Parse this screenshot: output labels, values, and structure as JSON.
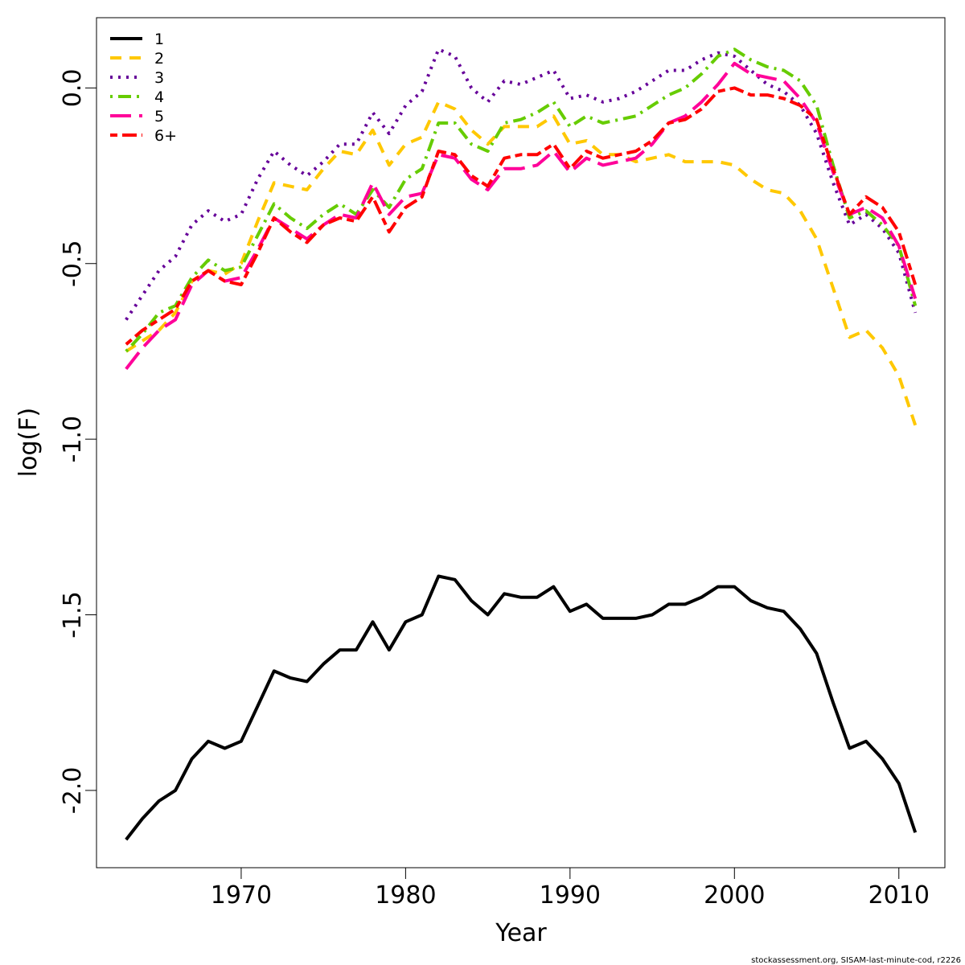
{
  "chart_data": {
    "type": "line",
    "xlabel": "Year",
    "ylabel": "log(F)",
    "xlim": [
      1961.2,
      2012.8
    ],
    "ylim": [
      -2.22,
      0.2
    ],
    "xticks": [
      1970,
      1980,
      1990,
      2000,
      2010
    ],
    "yticks": [
      -2.0,
      -1.5,
      -1.0,
      -0.5,
      0.0
    ],
    "ytick_labels": [
      "-2.0",
      "-1.5",
      "-1.0",
      "-0.5",
      "0.0"
    ],
    "grid": false,
    "legend_position": "top-left",
    "x": [
      1963,
      1964,
      1965,
      1966,
      1967,
      1968,
      1969,
      1970,
      1971,
      1972,
      1973,
      1974,
      1975,
      1976,
      1977,
      1978,
      1979,
      1980,
      1981,
      1982,
      1983,
      1984,
      1985,
      1986,
      1987,
      1988,
      1989,
      1990,
      1991,
      1992,
      1993,
      1994,
      1995,
      1996,
      1997,
      1998,
      1999,
      2000,
      2001,
      2002,
      2003,
      2004,
      2005,
      2006,
      2007,
      2008,
      2009,
      2010,
      2011
    ],
    "series": [
      {
        "name": "1",
        "color": "#000000",
        "dash": "solid",
        "values": [
          -2.14,
          -2.08,
          -2.03,
          -2.0,
          -1.91,
          -1.86,
          -1.88,
          -1.86,
          -1.76,
          -1.66,
          -1.68,
          -1.69,
          -1.64,
          -1.6,
          -1.6,
          -1.52,
          -1.6,
          -1.52,
          -1.5,
          -1.39,
          -1.4,
          -1.46,
          -1.5,
          -1.44,
          -1.45,
          -1.45,
          -1.42,
          -1.49,
          -1.47,
          -1.51,
          -1.51,
          -1.51,
          -1.5,
          -1.47,
          -1.47,
          -1.45,
          -1.42,
          -1.42,
          -1.46,
          -1.48,
          -1.49,
          -1.54,
          -1.61,
          -1.75,
          -1.88,
          -1.86,
          -1.91,
          -1.98,
          -2.12
        ]
      },
      {
        "name": "2",
        "color": "#FFC800",
        "dash": "dashed",
        "values": [
          -0.75,
          -0.72,
          -0.69,
          -0.64,
          -0.55,
          -0.52,
          -0.53,
          -0.5,
          -0.38,
          -0.27,
          -0.28,
          -0.29,
          -0.23,
          -0.18,
          -0.19,
          -0.12,
          -0.22,
          -0.16,
          -0.14,
          -0.04,
          -0.06,
          -0.12,
          -0.16,
          -0.11,
          -0.11,
          -0.11,
          -0.08,
          -0.16,
          -0.15,
          -0.19,
          -0.19,
          -0.21,
          -0.2,
          -0.19,
          -0.21,
          -0.21,
          -0.21,
          -0.22,
          -0.26,
          -0.29,
          -0.3,
          -0.35,
          -0.43,
          -0.57,
          -0.71,
          -0.69,
          -0.74,
          -0.82,
          -0.96
        ]
      },
      {
        "name": "3",
        "color": "#660099",
        "dash": "dotted",
        "values": [
          -0.66,
          -0.59,
          -0.52,
          -0.48,
          -0.39,
          -0.35,
          -0.38,
          -0.36,
          -0.26,
          -0.18,
          -0.22,
          -0.25,
          -0.21,
          -0.16,
          -0.16,
          -0.07,
          -0.13,
          -0.05,
          -0.01,
          0.11,
          0.09,
          0.0,
          -0.04,
          0.02,
          0.01,
          0.03,
          0.05,
          -0.03,
          -0.02,
          -0.04,
          -0.03,
          -0.01,
          0.02,
          0.05,
          0.05,
          0.08,
          0.1,
          0.09,
          0.05,
          0.01,
          -0.01,
          -0.05,
          -0.13,
          -0.27,
          -0.39,
          -0.36,
          -0.4,
          -0.47,
          -0.64
        ]
      },
      {
        "name": "4",
        "color": "#66CC00",
        "dash": "dotdash",
        "values": [
          -0.75,
          -0.7,
          -0.64,
          -0.62,
          -0.54,
          -0.49,
          -0.52,
          -0.51,
          -0.42,
          -0.33,
          -0.37,
          -0.4,
          -0.36,
          -0.33,
          -0.36,
          -0.29,
          -0.34,
          -0.26,
          -0.23,
          -0.1,
          -0.1,
          -0.16,
          -0.18,
          -0.1,
          -0.09,
          -0.07,
          -0.04,
          -0.11,
          -0.08,
          -0.1,
          -0.09,
          -0.08,
          -0.05,
          -0.02,
          0.0,
          0.04,
          0.09,
          0.11,
          0.08,
          0.06,
          0.05,
          0.02,
          -0.05,
          -0.22,
          -0.37,
          -0.35,
          -0.39,
          -0.45,
          -0.62
        ]
      },
      {
        "name": "5",
        "color": "#FF0099",
        "dash": "longdash",
        "values": [
          -0.8,
          -0.74,
          -0.69,
          -0.66,
          -0.56,
          -0.52,
          -0.55,
          -0.54,
          -0.46,
          -0.37,
          -0.4,
          -0.43,
          -0.39,
          -0.36,
          -0.37,
          -0.27,
          -0.36,
          -0.31,
          -0.3,
          -0.19,
          -0.2,
          -0.26,
          -0.29,
          -0.23,
          -0.23,
          -0.22,
          -0.18,
          -0.24,
          -0.2,
          -0.22,
          -0.21,
          -0.2,
          -0.16,
          -0.1,
          -0.08,
          -0.04,
          0.01,
          0.07,
          0.04,
          0.03,
          0.02,
          -0.03,
          -0.1,
          -0.24,
          -0.36,
          -0.34,
          -0.37,
          -0.45,
          -0.6
        ]
      },
      {
        "name": "6+",
        "color": "#FF0000",
        "dash": "twodash",
        "values": [
          -0.73,
          -0.69,
          -0.66,
          -0.63,
          -0.55,
          -0.52,
          -0.55,
          -0.56,
          -0.47,
          -0.37,
          -0.41,
          -0.44,
          -0.39,
          -0.37,
          -0.38,
          -0.31,
          -0.41,
          -0.34,
          -0.31,
          -0.18,
          -0.19,
          -0.25,
          -0.28,
          -0.2,
          -0.19,
          -0.19,
          -0.16,
          -0.23,
          -0.18,
          -0.2,
          -0.19,
          -0.18,
          -0.15,
          -0.1,
          -0.09,
          -0.06,
          -0.01,
          0.0,
          -0.02,
          -0.02,
          -0.03,
          -0.05,
          -0.09,
          -0.23,
          -0.36,
          -0.31,
          -0.34,
          -0.41,
          -0.56
        ]
      }
    ]
  },
  "footer": "stockassessment.org, SISAM-last-minute-cod, r2226"
}
